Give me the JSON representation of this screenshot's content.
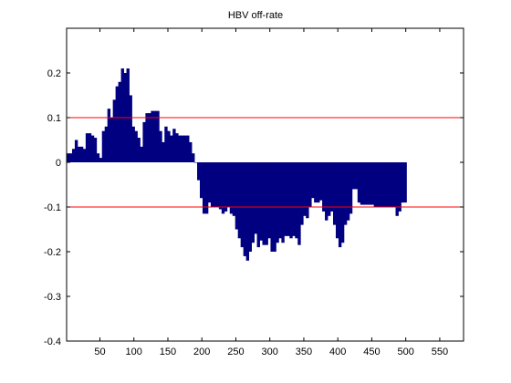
{
  "chart_data": {
    "type": "bar",
    "title": "HBV off-rate",
    "xlabel": "",
    "ylabel": "",
    "xlim": [
      1,
      585
    ],
    "ylim": [
      -0.4,
      0.3
    ],
    "xticks": [
      50,
      100,
      150,
      200,
      250,
      300,
      350,
      400,
      450,
      500,
      550
    ],
    "yticks": [
      -0.4,
      -0.3,
      -0.2,
      -0.1,
      0,
      0.1,
      0.2
    ],
    "ytick_labels": [
      "-0.4",
      "-0.3",
      "-0.2",
      "-0.1",
      "0",
      "0.1",
      "0.2"
    ],
    "bar_color": "#000080",
    "reference_lines": [
      {
        "y": 0.1,
        "color": "#ff0000"
      },
      {
        "y": -0.1,
        "color": "#ff0000"
      }
    ],
    "bar_width": 4,
    "x_start": 1,
    "x_step": 4,
    "values": [
      0.02,
      0.02,
      0.03,
      0.05,
      0.035,
      0.035,
      0.03,
      0.065,
      0.065,
      0.06,
      0.055,
      0.02,
      0.01,
      0.07,
      0.08,
      0.12,
      0.1,
      0.14,
      0.17,
      0.18,
      0.21,
      0.2,
      0.21,
      0.15,
      0.08,
      0.07,
      0.055,
      0.035,
      0.09,
      0.11,
      0.11,
      0.115,
      0.115,
      0.115,
      0.07,
      0.045,
      0.08,
      0.07,
      0.06,
      0.075,
      0.065,
      0.06,
      0.06,
      0.06,
      0.06,
      0.045,
      0.02,
      0.0,
      -0.04,
      -0.08,
      -0.115,
      -0.115,
      -0.09,
      -0.1,
      -0.1,
      -0.1,
      -0.105,
      -0.115,
      -0.11,
      -0.1,
      -0.115,
      -0.12,
      -0.15,
      -0.17,
      -0.19,
      -0.21,
      -0.22,
      -0.2,
      -0.18,
      -0.16,
      -0.19,
      -0.175,
      -0.185,
      -0.185,
      -0.17,
      -0.2,
      -0.2,
      -0.18,
      -0.17,
      -0.18,
      -0.165,
      -0.165,
      -0.17,
      -0.165,
      -0.17,
      -0.185,
      -0.14,
      -0.12,
      -0.125,
      -0.1,
      -0.08,
      -0.09,
      -0.09,
      -0.085,
      -0.11,
      -0.13,
      -0.12,
      -0.11,
      -0.14,
      -0.17,
      -0.19,
      -0.18,
      -0.14,
      -0.13,
      -0.115,
      -0.06,
      -0.06,
      -0.09,
      -0.095,
      -0.095,
      -0.095,
      -0.095,
      -0.095,
      -0.1,
      -0.1,
      -0.1,
      -0.1,
      -0.1,
      -0.1,
      -0.1,
      -0.1,
      -0.12,
      -0.11,
      -0.09,
      -0.09
    ]
  }
}
